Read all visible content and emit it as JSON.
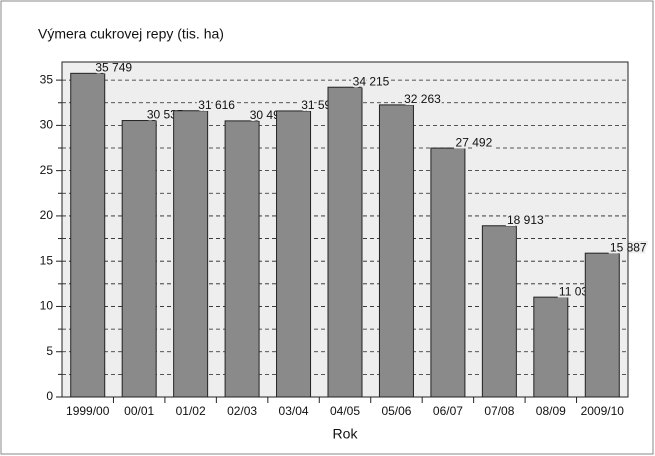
{
  "chart_data": {
    "type": "bar",
    "title": "Výmera cukrovej repy (tis. ha)",
    "x_label": "Rok",
    "categories": [
      "1999/00",
      "00/01",
      "01/02",
      "02/03",
      "03/04",
      "04/05",
      "05/06",
      "06/07",
      "07/08",
      "08/09",
      "2009/10"
    ],
    "values": [
      35.749,
      30.535,
      31.616,
      30.497,
      31.594,
      34.215,
      32.263,
      27.492,
      18.913,
      11.03,
      15.887
    ],
    "value_labels": [
      "35 749",
      "30 535",
      "31 616",
      "30 497",
      "31 594",
      "34 215",
      "32 263",
      "27 492",
      "18 913",
      "11 030",
      "15 887"
    ],
    "color": "#8a8a8a",
    "ylim": [
      0,
      37
    ],
    "yticks": [
      0,
      5,
      10,
      15,
      20,
      25,
      30,
      35
    ],
    "minor_yticks": [
      2.5,
      7.5,
      12.5,
      17.5,
      22.5,
      27.5,
      32.5
    ],
    "grid": true
  }
}
